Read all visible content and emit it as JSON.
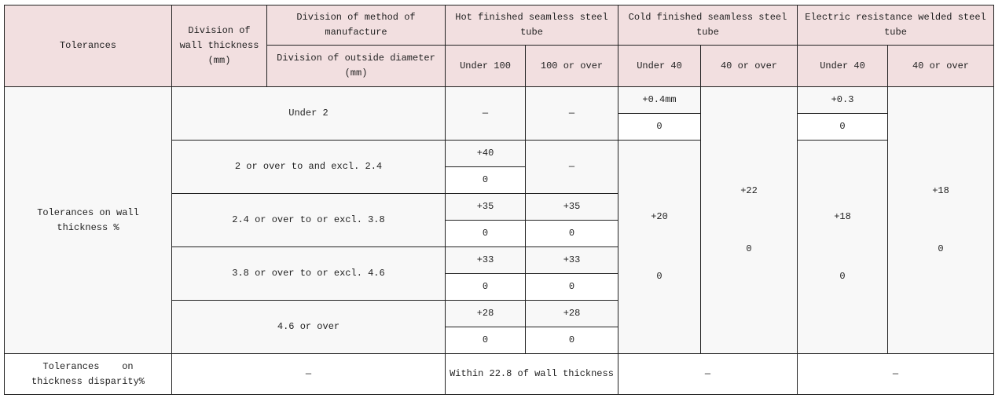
{
  "header": {
    "tolerances": "Tolerances",
    "wall_division": "Division of wall thickness (mm)",
    "method_division": "Division of method of manufacture",
    "od_division": "Division of outside diameter (mm)",
    "hot": "Hot finished seamless steel tube",
    "cold": "Cold finished seamless steel tube",
    "erw": "Electric resistance welded steel tube",
    "hot_sub": [
      "Under 100",
      "100 or over"
    ],
    "cold_sub": [
      "Under 40",
      "40 or over"
    ],
    "erw_sub": [
      "Under 40",
      "40 or over"
    ]
  },
  "wall": {
    "label": "Tolerances on wall thickness %",
    "rows": [
      {
        "range": "Under 2",
        "hot_under100": "—",
        "hot_100over": "—",
        "cold_under40_plus": "+0.4mm",
        "cold_under40_minus": "0",
        "erw_under40_plus": "+0.3",
        "erw_under40_minus": "0"
      },
      {
        "range": "2 or over to and excl. 2.4",
        "hot_under100_plus": "+40",
        "hot_under100_minus": "0",
        "hot_100over": "—"
      },
      {
        "range": "2.4 or over to or excl. 3.8",
        "hot_under100_plus": "+35",
        "hot_under100_minus": "0",
        "hot_100over_plus": "+35",
        "hot_100over_minus": "0"
      },
      {
        "range": "3.8 or over to or excl. 4.6",
        "hot_under100_plus": "+33",
        "hot_under100_minus": "0",
        "hot_100over_plus": "+33",
        "hot_100over_minus": "0"
      },
      {
        "range": "4.6 or over",
        "hot_under100_plus": "+28",
        "hot_under100_minus": "0",
        "hot_100over_plus": "+28",
        "hot_100over_minus": "0"
      }
    ],
    "cold_40over": {
      "plus": "+22",
      "minus": "0"
    },
    "cold_under40_2over": {
      "plus": "+20",
      "minus": "0"
    },
    "erw_under40_2over": {
      "plus": "+18",
      "minus": "0"
    },
    "erw_40over": {
      "plus": "+18",
      "minus": "0"
    }
  },
  "disparity": {
    "label": "Tolerances    on thickness disparity%",
    "division": "—",
    "hot": "Within 22.8 of wall thickness",
    "cold": "—",
    "erw": "—"
  }
}
